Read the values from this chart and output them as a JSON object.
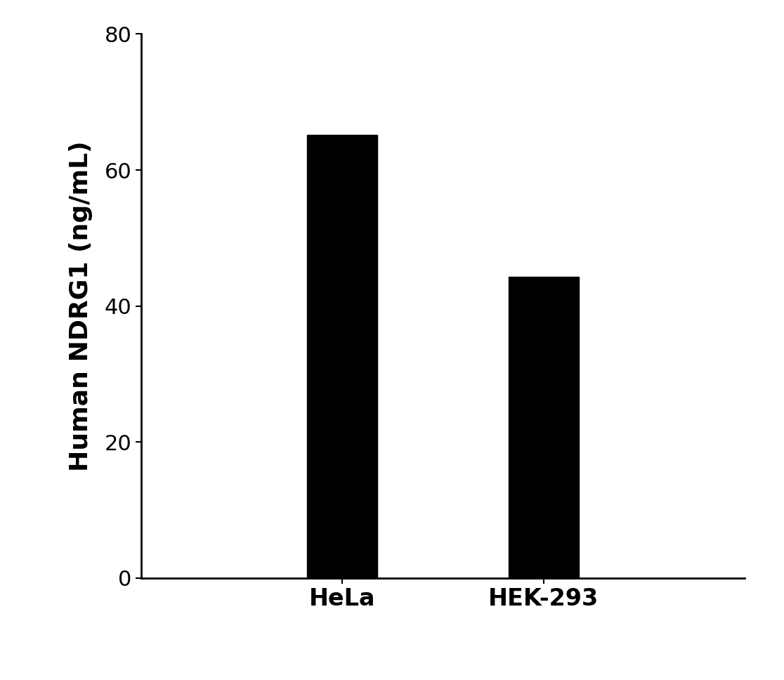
{
  "categories": [
    "HeLa",
    "HEK-293"
  ],
  "values": [
    65.2,
    44.27
  ],
  "bar_color": "#000000",
  "ylabel": "Human NDRG1 (ng/mL)",
  "ylim": [
    0,
    80
  ],
  "yticks": [
    0,
    20,
    40,
    60,
    80
  ],
  "bar_width": 0.35,
  "background_color": "#ffffff",
  "ylabel_fontsize": 26,
  "tick_fontsize": 22,
  "xlabel_fontsize": 24,
  "xlim": [
    -0.5,
    2.5
  ]
}
